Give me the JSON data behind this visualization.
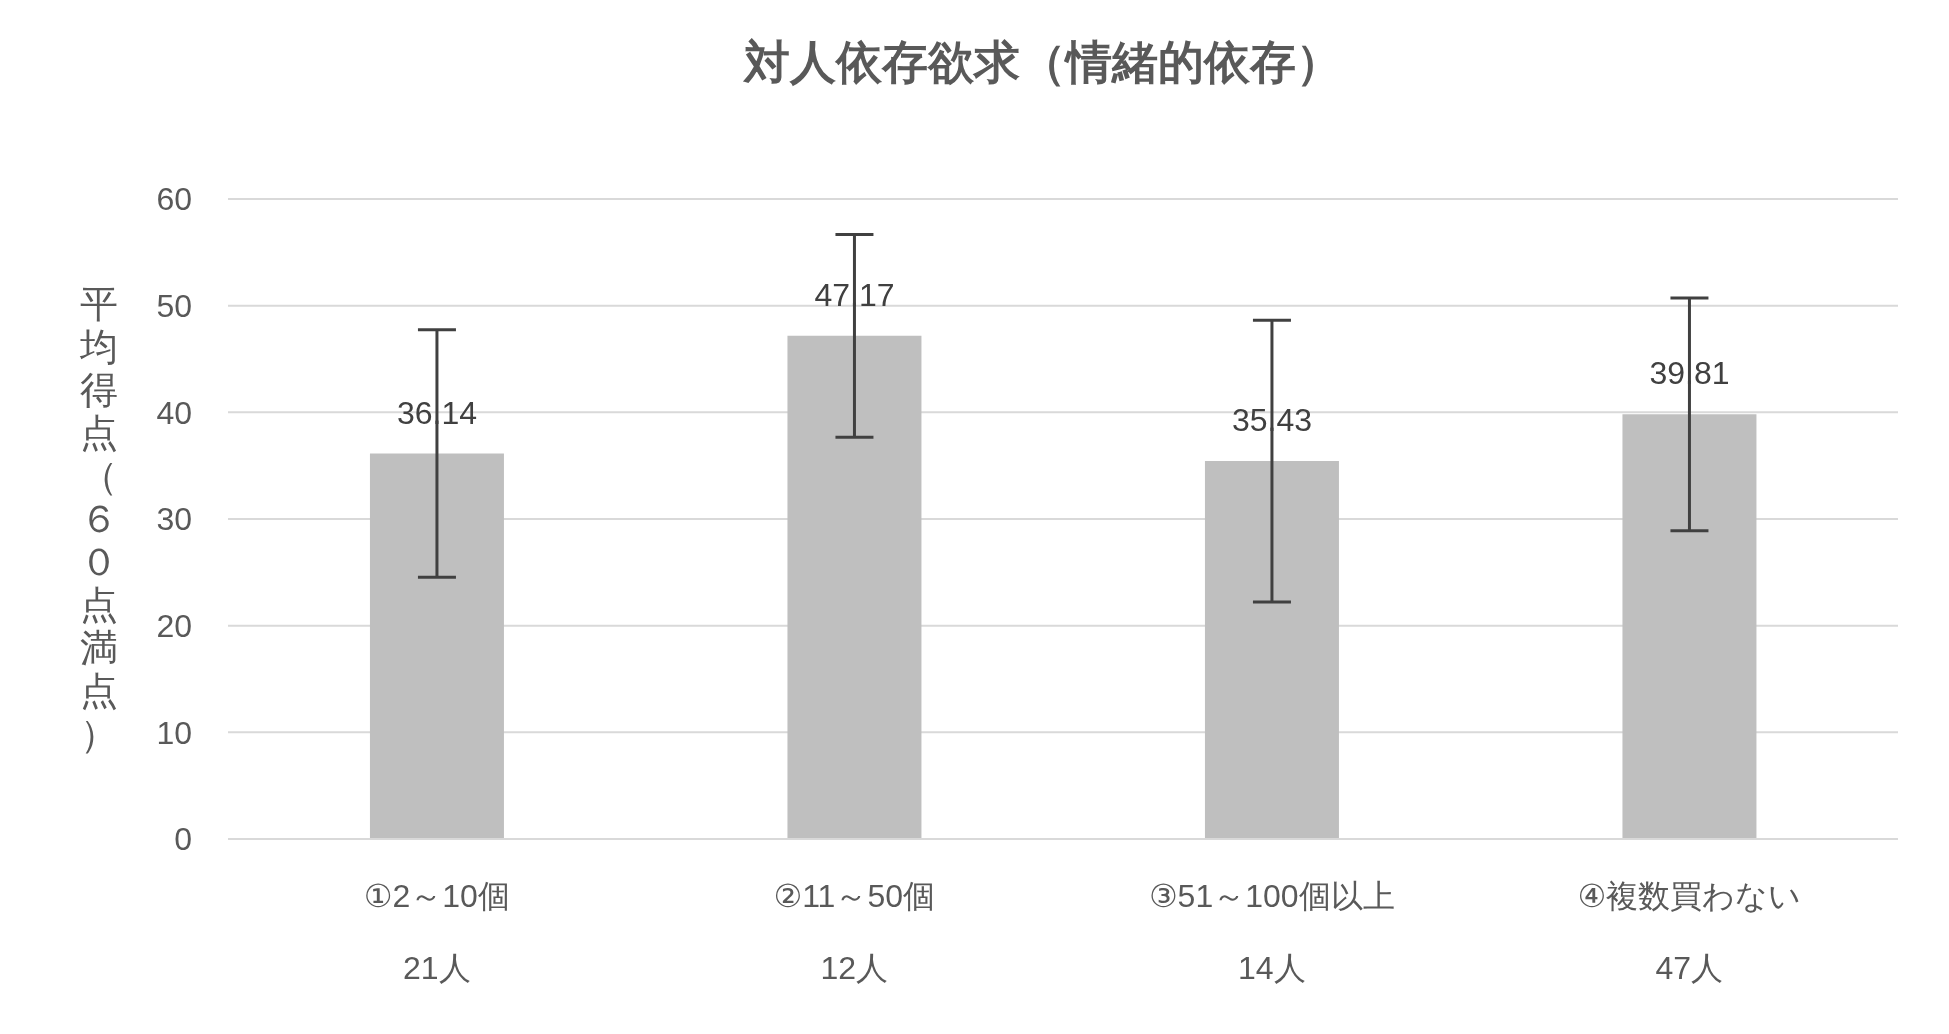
{
  "chart_data": {
    "type": "bar",
    "title": "対人依存欲求（情緒的依存）",
    "ylabel": "平均得点（６０点満点）",
    "categories": [
      "①2～10個\n21人",
      "②11～50個\n12人",
      "③51～100個以上\n14人",
      "④複数買わない\n47人"
    ],
    "values": [
      36.14,
      47.17,
      35.43,
      39.81
    ],
    "errors": [
      11.6,
      9.5,
      13.2,
      10.9
    ],
    "color": "#bfbfbf",
    "ylim": [
      0,
      60
    ],
    "yticks": [
      0,
      10,
      20,
      30,
      40,
      50,
      60
    ],
    "grid": "y",
    "data_labels": true
  }
}
